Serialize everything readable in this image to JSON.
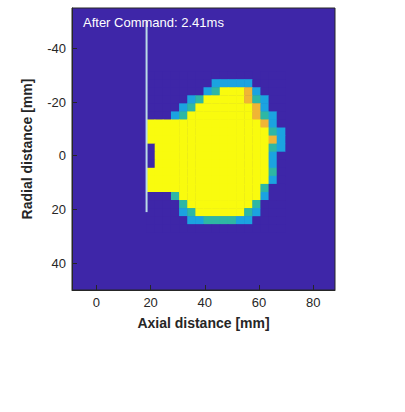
{
  "chart_data": {
    "type": "heatmap",
    "title": "After Command: 2.41ms",
    "x_label": "Axial distance [mm]",
    "y_label": "Radial distance [mm]",
    "xlim": [
      -9,
      88
    ],
    "ylim": [
      -55,
      50
    ],
    "xticks": [
      0,
      20,
      40,
      60,
      80
    ],
    "yticks": [
      -40,
      -20,
      0,
      20,
      40
    ],
    "grid": false,
    "zlim": [
      0,
      4
    ],
    "colors": [
      "#3e26a8",
      "#1ba3e0",
      "#2eb7a4",
      "#f0b535",
      "#f9fb0e"
    ],
    "cells": {
      "x": [
        20,
        23,
        26,
        29,
        32,
        35,
        38,
        41,
        44,
        47,
        50,
        53,
        56,
        59,
        62,
        65,
        68
      ],
      "y": [
        -30,
        -27,
        -24,
        -21,
        -18,
        -15,
        -12,
        -9,
        -6,
        -3,
        0,
        3,
        6,
        9,
        12,
        15,
        18,
        21,
        24,
        27
      ],
      "z": [
        [
          0,
          0,
          0,
          0,
          0,
          0,
          0,
          0,
          0,
          0,
          0,
          0,
          0,
          0,
          0,
          0,
          0
        ],
        [
          0,
          0,
          0,
          0,
          0,
          0,
          0,
          0,
          1,
          1,
          1,
          1,
          1,
          0,
          0,
          0,
          0
        ],
        [
          0,
          0,
          0,
          0,
          0,
          0,
          0,
          1,
          2,
          4,
          4,
          4,
          3,
          1,
          0,
          0,
          0
        ],
        [
          0,
          0,
          0,
          0,
          0,
          1,
          2,
          4,
          4,
          4,
          4,
          4,
          3,
          2,
          1,
          0,
          0
        ],
        [
          0,
          0,
          0,
          0,
          1,
          2,
          4,
          4,
          4,
          4,
          4,
          4,
          4,
          3,
          1,
          0,
          0
        ],
        [
          0,
          0,
          0,
          1,
          2,
          4,
          4,
          4,
          4,
          4,
          4,
          4,
          4,
          3,
          2,
          1,
          0
        ],
        [
          4,
          4,
          4,
          4,
          4,
          4,
          4,
          4,
          4,
          4,
          4,
          4,
          4,
          4,
          3,
          1,
          0
        ],
        [
          4,
          4,
          4,
          4,
          4,
          4,
          4,
          4,
          4,
          4,
          4,
          4,
          4,
          4,
          4,
          2,
          1
        ],
        [
          4,
          4,
          4,
          4,
          4,
          4,
          4,
          4,
          4,
          4,
          4,
          4,
          4,
          4,
          4,
          3,
          1
        ],
        [
          0,
          4,
          4,
          4,
          4,
          4,
          4,
          4,
          4,
          4,
          4,
          4,
          4,
          4,
          4,
          2,
          1
        ],
        [
          0,
          4,
          4,
          4,
          4,
          4,
          4,
          4,
          4,
          4,
          4,
          4,
          4,
          4,
          4,
          1,
          0
        ],
        [
          0,
          4,
          4,
          4,
          4,
          4,
          4,
          4,
          4,
          4,
          4,
          4,
          4,
          4,
          4,
          1,
          0
        ],
        [
          4,
          4,
          4,
          4,
          4,
          4,
          4,
          4,
          4,
          4,
          4,
          4,
          4,
          4,
          4,
          2,
          0
        ],
        [
          4,
          4,
          4,
          4,
          4,
          4,
          4,
          4,
          4,
          4,
          4,
          4,
          4,
          4,
          4,
          1,
          0
        ],
        [
          4,
          4,
          4,
          4,
          4,
          4,
          4,
          4,
          4,
          4,
          4,
          4,
          4,
          4,
          2,
          0,
          0
        ],
        [
          0,
          0,
          0,
          2,
          4,
          4,
          4,
          4,
          4,
          4,
          4,
          4,
          4,
          4,
          1,
          0,
          0
        ],
        [
          0,
          0,
          0,
          0,
          2,
          4,
          4,
          4,
          4,
          4,
          4,
          4,
          4,
          2,
          0,
          0,
          0
        ],
        [
          0,
          0,
          0,
          0,
          1,
          2,
          4,
          4,
          4,
          4,
          4,
          4,
          2,
          1,
          0,
          0,
          0
        ],
        [
          0,
          0,
          0,
          0,
          0,
          1,
          1,
          2,
          2,
          2,
          2,
          1,
          1,
          0,
          0,
          0,
          0
        ],
        [
          0,
          0,
          0,
          0,
          0,
          0,
          0,
          0,
          0,
          0,
          0,
          0,
          0,
          0,
          0,
          0,
          0
        ]
      ]
    },
    "lines": [
      {
        "x": [
          18.5,
          18.5
        ],
        "y": [
          -50,
          21
        ],
        "color": "#b9dbe6"
      }
    ]
  }
}
